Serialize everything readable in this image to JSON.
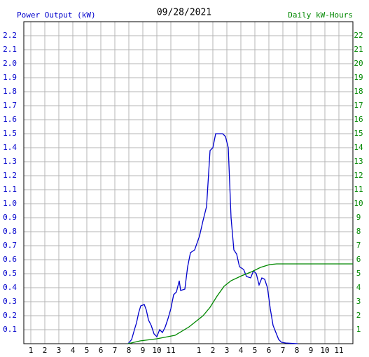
{
  "chart_data": {
    "type": "line",
    "title": "09/28/2021",
    "y_label": "Power Output (kW)",
    "y2_label": "Daily kW-Hours",
    "grid": true,
    "xlim": [
      0.5,
      24
    ],
    "xticks": [
      1,
      2,
      3,
      4,
      5,
      6,
      7,
      8,
      9,
      10,
      11,
      {
        "value": 13,
        "label": "1"
      },
      {
        "value": 14,
        "label": "2"
      },
      {
        "value": 15,
        "label": "3"
      },
      {
        "value": 16,
        "label": "4"
      },
      {
        "value": 17,
        "label": "5"
      },
      {
        "value": 18,
        "label": "6"
      },
      {
        "value": 19,
        "label": "7"
      },
      {
        "value": 20,
        "label": "8"
      },
      {
        "value": 21,
        "label": "9"
      },
      {
        "value": 22,
        "label": "10"
      },
      {
        "value": 23,
        "label": "11"
      }
    ],
    "ylim": [
      0,
      2.3
    ],
    "yticks": [
      0.1,
      0.2,
      0.3,
      0.4,
      0.5,
      0.6,
      0.7,
      0.8,
      0.9,
      {
        "value": 1,
        "label": "1.0"
      },
      1.1,
      1.2,
      1.3,
      1.4,
      1.5,
      1.6,
      1.7,
      1.8,
      1.9,
      {
        "value": 2,
        "label": "2.0"
      },
      2.1,
      2.2
    ],
    "y2lim": [
      0,
      23
    ],
    "y2ticks": [
      1,
      2,
      3,
      4,
      5,
      6,
      7,
      8,
      9,
      10,
      11,
      12,
      13,
      14,
      15,
      16,
      17,
      18,
      19,
      20,
      21,
      22
    ],
    "series": [
      {
        "name": "Power Output (kW)",
        "color": "#0000cc",
        "x": [
          7.95,
          8.2,
          8.4,
          8.55,
          8.7,
          8.85,
          9.1,
          9.25,
          9.4,
          9.6,
          9.8,
          10.0,
          10.2,
          10.4,
          10.6,
          10.8,
          11.0,
          11.2,
          11.4,
          11.6,
          11.7,
          12.0,
          12.2,
          12.4,
          12.7,
          13.05,
          13.3,
          13.55,
          13.8,
          14.0,
          14.2,
          14.7,
          14.9,
          15.1,
          15.3,
          15.5,
          15.7,
          15.9,
          16.2,
          16.4,
          16.7,
          16.9,
          17.1,
          17.3,
          17.5,
          17.7,
          17.9,
          18.1,
          18.3,
          18.5,
          18.7,
          18.9,
          19.2,
          20.05
        ],
        "values": [
          0,
          0.03,
          0.1,
          0.15,
          0.22,
          0.27,
          0.28,
          0.24,
          0.17,
          0.13,
          0.07,
          0.05,
          0.1,
          0.08,
          0.12,
          0.18,
          0.25,
          0.35,
          0.37,
          0.45,
          0.38,
          0.39,
          0.55,
          0.65,
          0.67,
          0.77,
          0.88,
          0.98,
          1.38,
          1.4,
          1.5,
          1.5,
          1.48,
          1.4,
          0.9,
          0.67,
          0.64,
          0.55,
          0.53,
          0.48,
          0.47,
          0.52,
          0.5,
          0.42,
          0.47,
          0.46,
          0.4,
          0.25,
          0.13,
          0.08,
          0.03,
          0.01,
          0.005,
          0
        ]
      },
      {
        "name": "Daily kW-Hours",
        "color": "#008800",
        "axis": "y2",
        "x": [
          7.95,
          8.8,
          10.0,
          11.3,
          12.3,
          13.3,
          13.8,
          14.3,
          14.8,
          15.3,
          16.05,
          16.8,
          17.4,
          18.05,
          18.55,
          24
        ],
        "values": [
          0,
          0.2,
          0.35,
          0.6,
          1.2,
          2,
          2.6,
          3.4,
          4.1,
          4.5,
          4.85,
          5.15,
          5.45,
          5.65,
          5.7,
          5.7
        ]
      }
    ]
  }
}
